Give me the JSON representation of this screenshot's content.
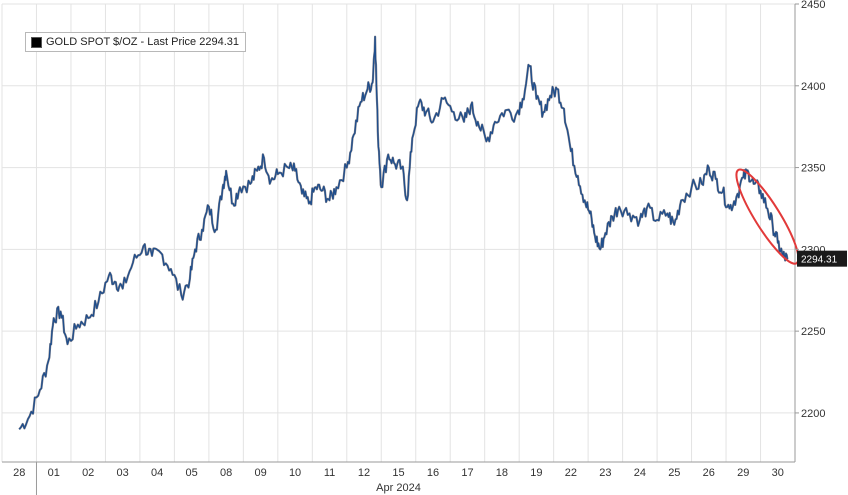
{
  "chart_data": {
    "type": "line",
    "legend_text": "GOLD SPOT $/OZ - Last Price 2294.31",
    "legend_position": "top-left",
    "last_price_label": "2294.31",
    "month_label": "Apr 2024",
    "ylim": [
      2170,
      2450
    ],
    "y_ticks": [
      2200,
      2250,
      2300,
      2350,
      2400,
      2450
    ],
    "categories": [
      "28",
      "01",
      "02",
      "03",
      "04",
      "05",
      "08",
      "09",
      "10",
      "11",
      "12",
      "15",
      "16",
      "17",
      "18",
      "19",
      "22",
      "23",
      "24",
      "25",
      "26",
      "29",
      "30"
    ],
    "grid": true,
    "series": [
      {
        "name": "GOLD SPOT $/OZ",
        "color": "#1f4e8c",
        "points": [
          [
            0.0,
            2190
          ],
          [
            0.3,
            2198
          ],
          [
            0.6,
            2214
          ],
          [
            0.85,
            2232
          ],
          [
            1.0,
            2258
          ],
          [
            1.2,
            2262
          ],
          [
            1.4,
            2242
          ],
          [
            1.7,
            2254
          ],
          [
            2.0,
            2258
          ],
          [
            2.3,
            2268
          ],
          [
            2.6,
            2284
          ],
          [
            2.8,
            2280
          ],
          [
            3.0,
            2276
          ],
          [
            3.3,
            2292
          ],
          [
            3.6,
            2302
          ],
          [
            3.85,
            2296
          ],
          [
            4.1,
            2298
          ],
          [
            4.4,
            2288
          ],
          [
            4.7,
            2272
          ],
          [
            4.95,
            2282
          ],
          [
            5.1,
            2300
          ],
          [
            5.3,
            2312
          ],
          [
            5.5,
            2326
          ],
          [
            5.7,
            2312
          ],
          [
            5.9,
            2338
          ],
          [
            6.0,
            2348
          ],
          [
            6.2,
            2328
          ],
          [
            6.4,
            2338
          ],
          [
            6.7,
            2340
          ],
          [
            6.9,
            2348
          ],
          [
            7.1,
            2356
          ],
          [
            7.3,
            2342
          ],
          [
            7.5,
            2346
          ],
          [
            7.8,
            2350
          ],
          [
            8.0,
            2348
          ],
          [
            8.2,
            2334
          ],
          [
            8.4,
            2328
          ],
          [
            8.6,
            2338
          ],
          [
            8.8,
            2336
          ],
          [
            9.0,
            2330
          ],
          [
            9.2,
            2338
          ],
          [
            9.5,
            2350
          ],
          [
            9.7,
            2370
          ],
          [
            9.9,
            2390
          ],
          [
            10.1,
            2398
          ],
          [
            10.25,
            2402
          ],
          [
            10.32,
            2430
          ],
          [
            10.4,
            2372
          ],
          [
            10.5,
            2338
          ],
          [
            10.7,
            2358
          ],
          [
            10.9,
            2352
          ],
          [
            11.1,
            2350
          ],
          [
            11.25,
            2330
          ],
          [
            11.4,
            2368
          ],
          [
            11.6,
            2390
          ],
          [
            11.8,
            2384
          ],
          [
            12.0,
            2378
          ],
          [
            12.3,
            2392
          ],
          [
            12.6,
            2384
          ],
          [
            12.9,
            2378
          ],
          [
            13.1,
            2388
          ],
          [
            13.3,
            2378
          ],
          [
            13.55,
            2366
          ],
          [
            13.8,
            2378
          ],
          [
            14.1,
            2385
          ],
          [
            14.4,
            2382
          ],
          [
            14.6,
            2392
          ],
          [
            14.8,
            2412
          ],
          [
            15.0,
            2392
          ],
          [
            15.2,
            2384
          ],
          [
            15.4,
            2394
          ],
          [
            15.6,
            2398
          ],
          [
            15.8,
            2386
          ],
          [
            16.0,
            2360
          ],
          [
            16.2,
            2345
          ],
          [
            16.4,
            2330
          ],
          [
            16.55,
            2322
          ],
          [
            16.7,
            2308
          ],
          [
            16.85,
            2300
          ],
          [
            17.0,
            2310
          ],
          [
            17.2,
            2320
          ],
          [
            17.4,
            2326
          ],
          [
            17.7,
            2322
          ],
          [
            18.0,
            2318
          ],
          [
            18.2,
            2325
          ],
          [
            18.5,
            2318
          ],
          [
            18.8,
            2322
          ],
          [
            19.0,
            2315
          ],
          [
            19.2,
            2330
          ],
          [
            19.5,
            2338
          ],
          [
            19.8,
            2340
          ],
          [
            20.0,
            2350
          ],
          [
            20.2,
            2343
          ],
          [
            20.4,
            2335
          ],
          [
            20.6,
            2325
          ],
          [
            20.8,
            2332
          ],
          [
            21.0,
            2344
          ],
          [
            21.15,
            2347
          ],
          [
            21.3,
            2340
          ],
          [
            21.5,
            2336
          ],
          [
            21.7,
            2325
          ],
          [
            21.85,
            2315
          ],
          [
            22.0,
            2304
          ],
          [
            22.15,
            2296
          ],
          [
            22.28,
            2294
          ]
        ]
      }
    ]
  },
  "annotation": {
    "type": "ellipse",
    "color": "#e23a3a",
    "x_range": [
      20.9,
      22.5
    ],
    "y_range": [
      2292,
      2348
    ]
  }
}
